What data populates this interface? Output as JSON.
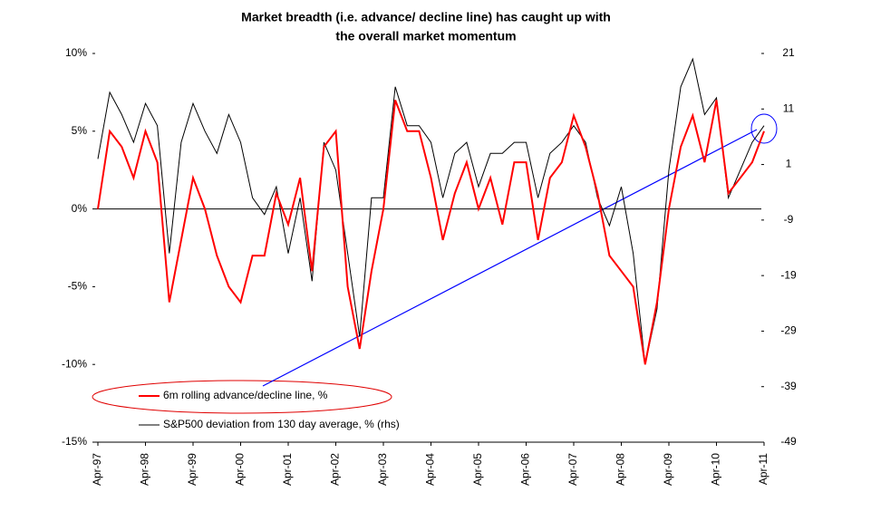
{
  "chart_data": {
    "type": "line",
    "title": [
      "Market breadth (i.e. advance/ decline line) has caught up with",
      "the overall market momentum"
    ],
    "categories": [
      "Apr-97",
      null,
      null,
      null,
      "Apr-98",
      null,
      null,
      null,
      "Apr-99",
      null,
      null,
      null,
      "Apr-00",
      null,
      null,
      null,
      "Apr-01",
      null,
      null,
      null,
      "Apr-02",
      null,
      null,
      null,
      "Apr-03",
      null,
      null,
      null,
      "Apr-04",
      null,
      null,
      null,
      "Apr-05",
      null,
      null,
      null,
      "Apr-06",
      null,
      null,
      null,
      "Apr-07",
      null,
      null,
      null,
      "Apr-08",
      null,
      null,
      null,
      "Apr-09",
      null,
      null,
      null,
      "Apr-10",
      null,
      null,
      null,
      "Apr-11"
    ],
    "series": [
      {
        "name": "6m rolling advance/decline line, %",
        "color": "#ff0000",
        "values": [
          0,
          5,
          4,
          2,
          5,
          3,
          -6,
          -2,
          2,
          0,
          -3,
          -5,
          -6,
          -3,
          -3,
          1,
          -1,
          2,
          -4,
          4,
          5,
          -5,
          -9,
          -4,
          0,
          7,
          5,
          5,
          2,
          -2,
          1,
          3,
          0,
          2,
          -1,
          3,
          3,
          -2,
          2,
          3,
          6,
          4,
          1,
          -3,
          -4,
          -5,
          -10,
          -6,
          0,
          4,
          6,
          3,
          7,
          1,
          2,
          3,
          5
        ]
      },
      {
        "name": "S&P500 deviation from 130 day average, % (rhs)",
        "color": "#000000",
        "axis": "y2",
        "values": [
          2,
          14,
          10,
          5,
          12,
          8,
          -15,
          5,
          12,
          7,
          3,
          10,
          5,
          -5,
          -8,
          -3,
          -15,
          -5,
          -20,
          5,
          0,
          -15,
          -30,
          -5,
          -5,
          15,
          8,
          8,
          5,
          -5,
          3,
          5,
          -3,
          3,
          3,
          5,
          5,
          -5,
          3,
          5,
          8,
          5,
          -5,
          -10,
          -3,
          -15,
          -35,
          -25,
          0,
          15,
          20,
          10,
          13,
          -5,
          0,
          5,
          8
        ]
      }
    ],
    "ylim": [
      -15,
      10
    ],
    "yticks": [
      {
        "value": -15,
        "label": "-15%"
      },
      {
        "value": -10,
        "label": "-10%"
      },
      {
        "value": -5,
        "label": "-5%"
      },
      {
        "value": 0,
        "label": "0%"
      },
      {
        "value": 5,
        "label": "5%"
      },
      {
        "value": 10,
        "label": "10%"
      }
    ],
    "y2lim": [
      -49,
      21
    ],
    "y2ticks": [
      -49,
      -39,
      -29,
      -19,
      -9,
      1,
      11,
      21
    ]
  }
}
